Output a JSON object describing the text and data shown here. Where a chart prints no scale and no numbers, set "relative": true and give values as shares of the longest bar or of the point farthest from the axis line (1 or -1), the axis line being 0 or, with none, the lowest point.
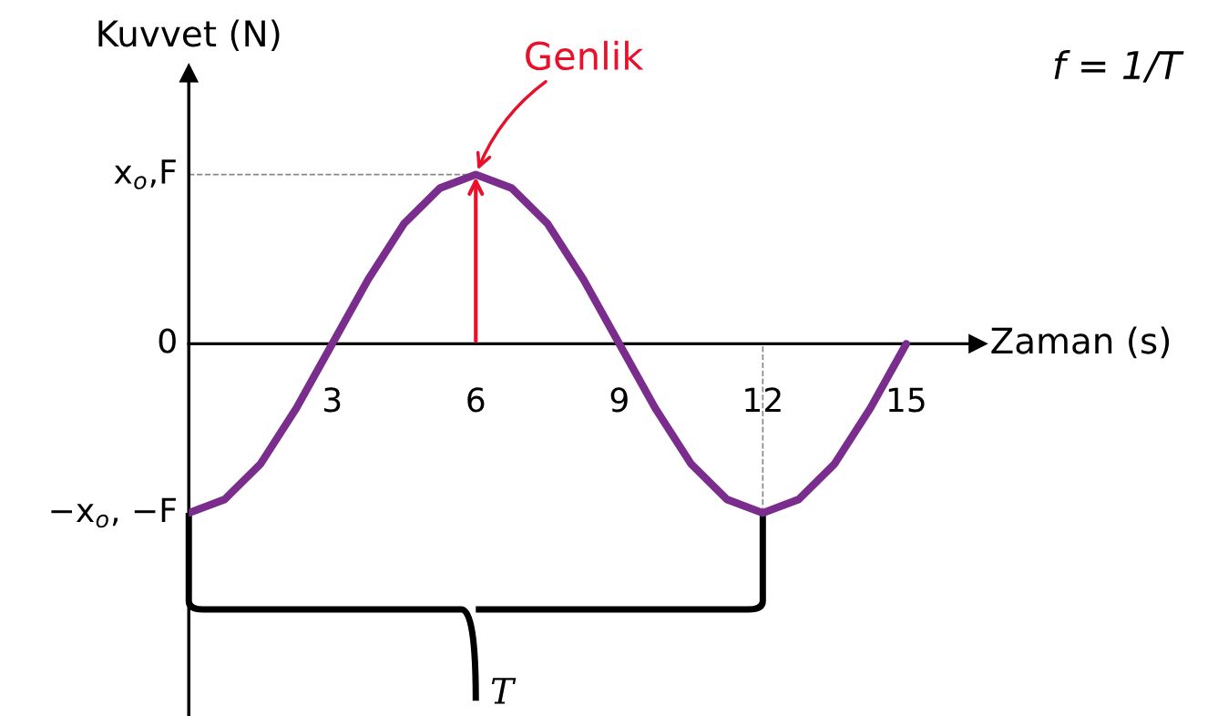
{
  "chart_data": {
    "type": "line",
    "xlabel": "Zaman (s)",
    "ylabel": "Kuvvet (N)",
    "relative": true,
    "x": [
      0,
      0.75,
      1.5,
      2.25,
      3,
      3.75,
      4.5,
      5.25,
      6,
      6.75,
      7.5,
      8.25,
      9,
      9.75,
      10.5,
      11.25,
      12,
      12.75,
      13.5,
      14.25,
      15
    ],
    "series": [
      {
        "color": "#7b2d8e",
        "values": [
          -1,
          -0.92,
          -0.71,
          -0.38,
          0,
          0.38,
          0.71,
          0.92,
          1,
          0.92,
          0.71,
          0.38,
          0,
          -0.38,
          -0.71,
          -0.92,
          -1,
          -0.92,
          -0.71,
          -0.38,
          0
        ]
      }
    ],
    "xlim": [
      0,
      16.5
    ],
    "xticks": [
      3,
      6,
      9,
      12,
      15
    ],
    "ref_lines": [
      {
        "axis": "y",
        "value": 1,
        "color": "#888888",
        "line_style": "dashed"
      },
      {
        "axis": "x",
        "value": 12,
        "color": "#888888",
        "line_style": "dashed"
      }
    ],
    "annotations": [
      "Genlik",
      "f = 1/T",
      "T",
      "0",
      {
        "text": "x$_{o}$,F",
        "x": 0,
        "y": 1
      },
      {
        "text": "−x$_{o}$, −F",
        "x": 0,
        "y": -1
      }
    ],
    "grid": false,
    "marker": "none",
    "line_style": "solid"
  }
}
